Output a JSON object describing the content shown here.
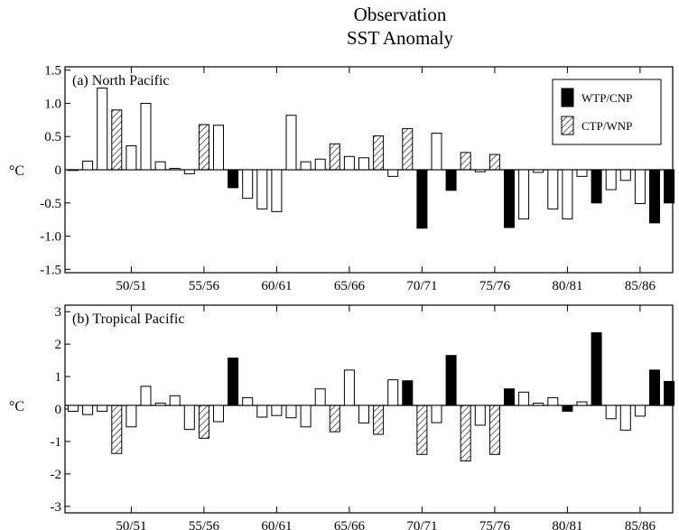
{
  "figure": {
    "title": "Observation",
    "subtitle": "SST Anomaly"
  },
  "legend": {
    "items": [
      {
        "label": "WTP/CNP",
        "style": "solid"
      },
      {
        "label": "CTP/WNP",
        "style": "hatched"
      }
    ]
  },
  "chart_data": [
    {
      "type": "bar",
      "panel_label": "(a) North Pacific",
      "ylabel": "°C",
      "ylim": [
        -1.55,
        1.55
      ],
      "yticks": [
        "1.5",
        "1.0",
        "0.5",
        "0",
        "-0.5",
        "-1.0",
        "-1.5"
      ],
      "ytick_values": [
        1.5,
        1.0,
        0.5,
        0,
        -0.5,
        -1.0,
        -1.5
      ],
      "xtick_labels": [
        "50/51",
        "55/56",
        "60/61",
        "65/66",
        "70/71",
        "75/76",
        "80/81",
        "85/86"
      ],
      "x_first_year": 1946,
      "series_styles": [
        "open",
        "solid",
        "hatched"
      ],
      "values": [
        -0.01,
        0.13,
        1.23,
        0.9,
        0.36,
        1.0,
        0.12,
        0.02,
        -0.06,
        0.68,
        0.67,
        -0.27,
        -0.43,
        -0.59,
        -0.63,
        0.82,
        0.12,
        0.16,
        0.39,
        0.2,
        0.18,
        0.51,
        -0.1,
        0.62,
        -0.88,
        0.55,
        -0.31,
        0.26,
        -0.03,
        0.23,
        -0.87,
        -0.74,
        -0.04,
        -0.59,
        -0.74,
        -0.1,
        -0.5,
        -0.3,
        -0.16,
        -0.51,
        -0.8,
        -0.5
      ],
      "styles": [
        "open",
        "open",
        "open",
        "hatched",
        "open",
        "open",
        "open",
        "open",
        "open",
        "hatched",
        "open",
        "solid",
        "open",
        "open",
        "open",
        "open",
        "open",
        "open",
        "hatched",
        "open",
        "open",
        "hatched",
        "open",
        "hatched",
        "solid",
        "open",
        "solid",
        "hatched",
        "open",
        "hatched",
        "solid",
        "open",
        "open",
        "open",
        "open",
        "open",
        "solid",
        "open",
        "open",
        "open",
        "solid",
        "solid"
      ]
    },
    {
      "type": "bar",
      "panel_label": "(b) Tropical Pacific",
      "ylabel": "°C",
      "ylim": [
        -3.2,
        3.2
      ],
      "yticks": [
        "3",
        "2",
        "1",
        "0",
        "-1",
        "-2",
        "-3"
      ],
      "ytick_values": [
        3,
        2,
        1,
        0,
        -1,
        -2,
        -3
      ],
      "xtick_labels": [
        "50/51",
        "55/56",
        "60/61",
        "65/66",
        "70/71",
        "75/76",
        "80/81",
        "85/86"
      ],
      "x_first_year": 1946,
      "series_styles": [
        "open",
        "solid",
        "hatched"
      ],
      "values": [
        -0.07,
        -0.17,
        -0.07,
        -1.37,
        -0.55,
        0.7,
        0.18,
        0.41,
        -0.63,
        -0.9,
        -0.39,
        1.57,
        0.35,
        -0.25,
        -0.2,
        -0.27,
        -0.55,
        0.62,
        -0.7,
        1.2,
        -0.43,
        -0.78,
        0.9,
        0.87,
        -1.4,
        -0.42,
        1.65,
        -1.6,
        -0.5,
        -1.4,
        0.62,
        0.52,
        0.18,
        0.35,
        -0.07,
        0.22,
        2.35,
        -0.3,
        -0.65,
        -0.22,
        1.2,
        0.85
      ],
      "styles": [
        "open",
        "open",
        "open",
        "hatched",
        "open",
        "open",
        "open",
        "open",
        "open",
        "hatched",
        "open",
        "solid",
        "open",
        "open",
        "open",
        "open",
        "open",
        "open",
        "hatched",
        "open",
        "open",
        "hatched",
        "open",
        "solid",
        "hatched",
        "open",
        "solid",
        "hatched",
        "open",
        "hatched",
        "solid",
        "open",
        "open",
        "open",
        "solid",
        "open",
        "solid",
        "open",
        "open",
        "open",
        "solid",
        "solid"
      ]
    }
  ]
}
